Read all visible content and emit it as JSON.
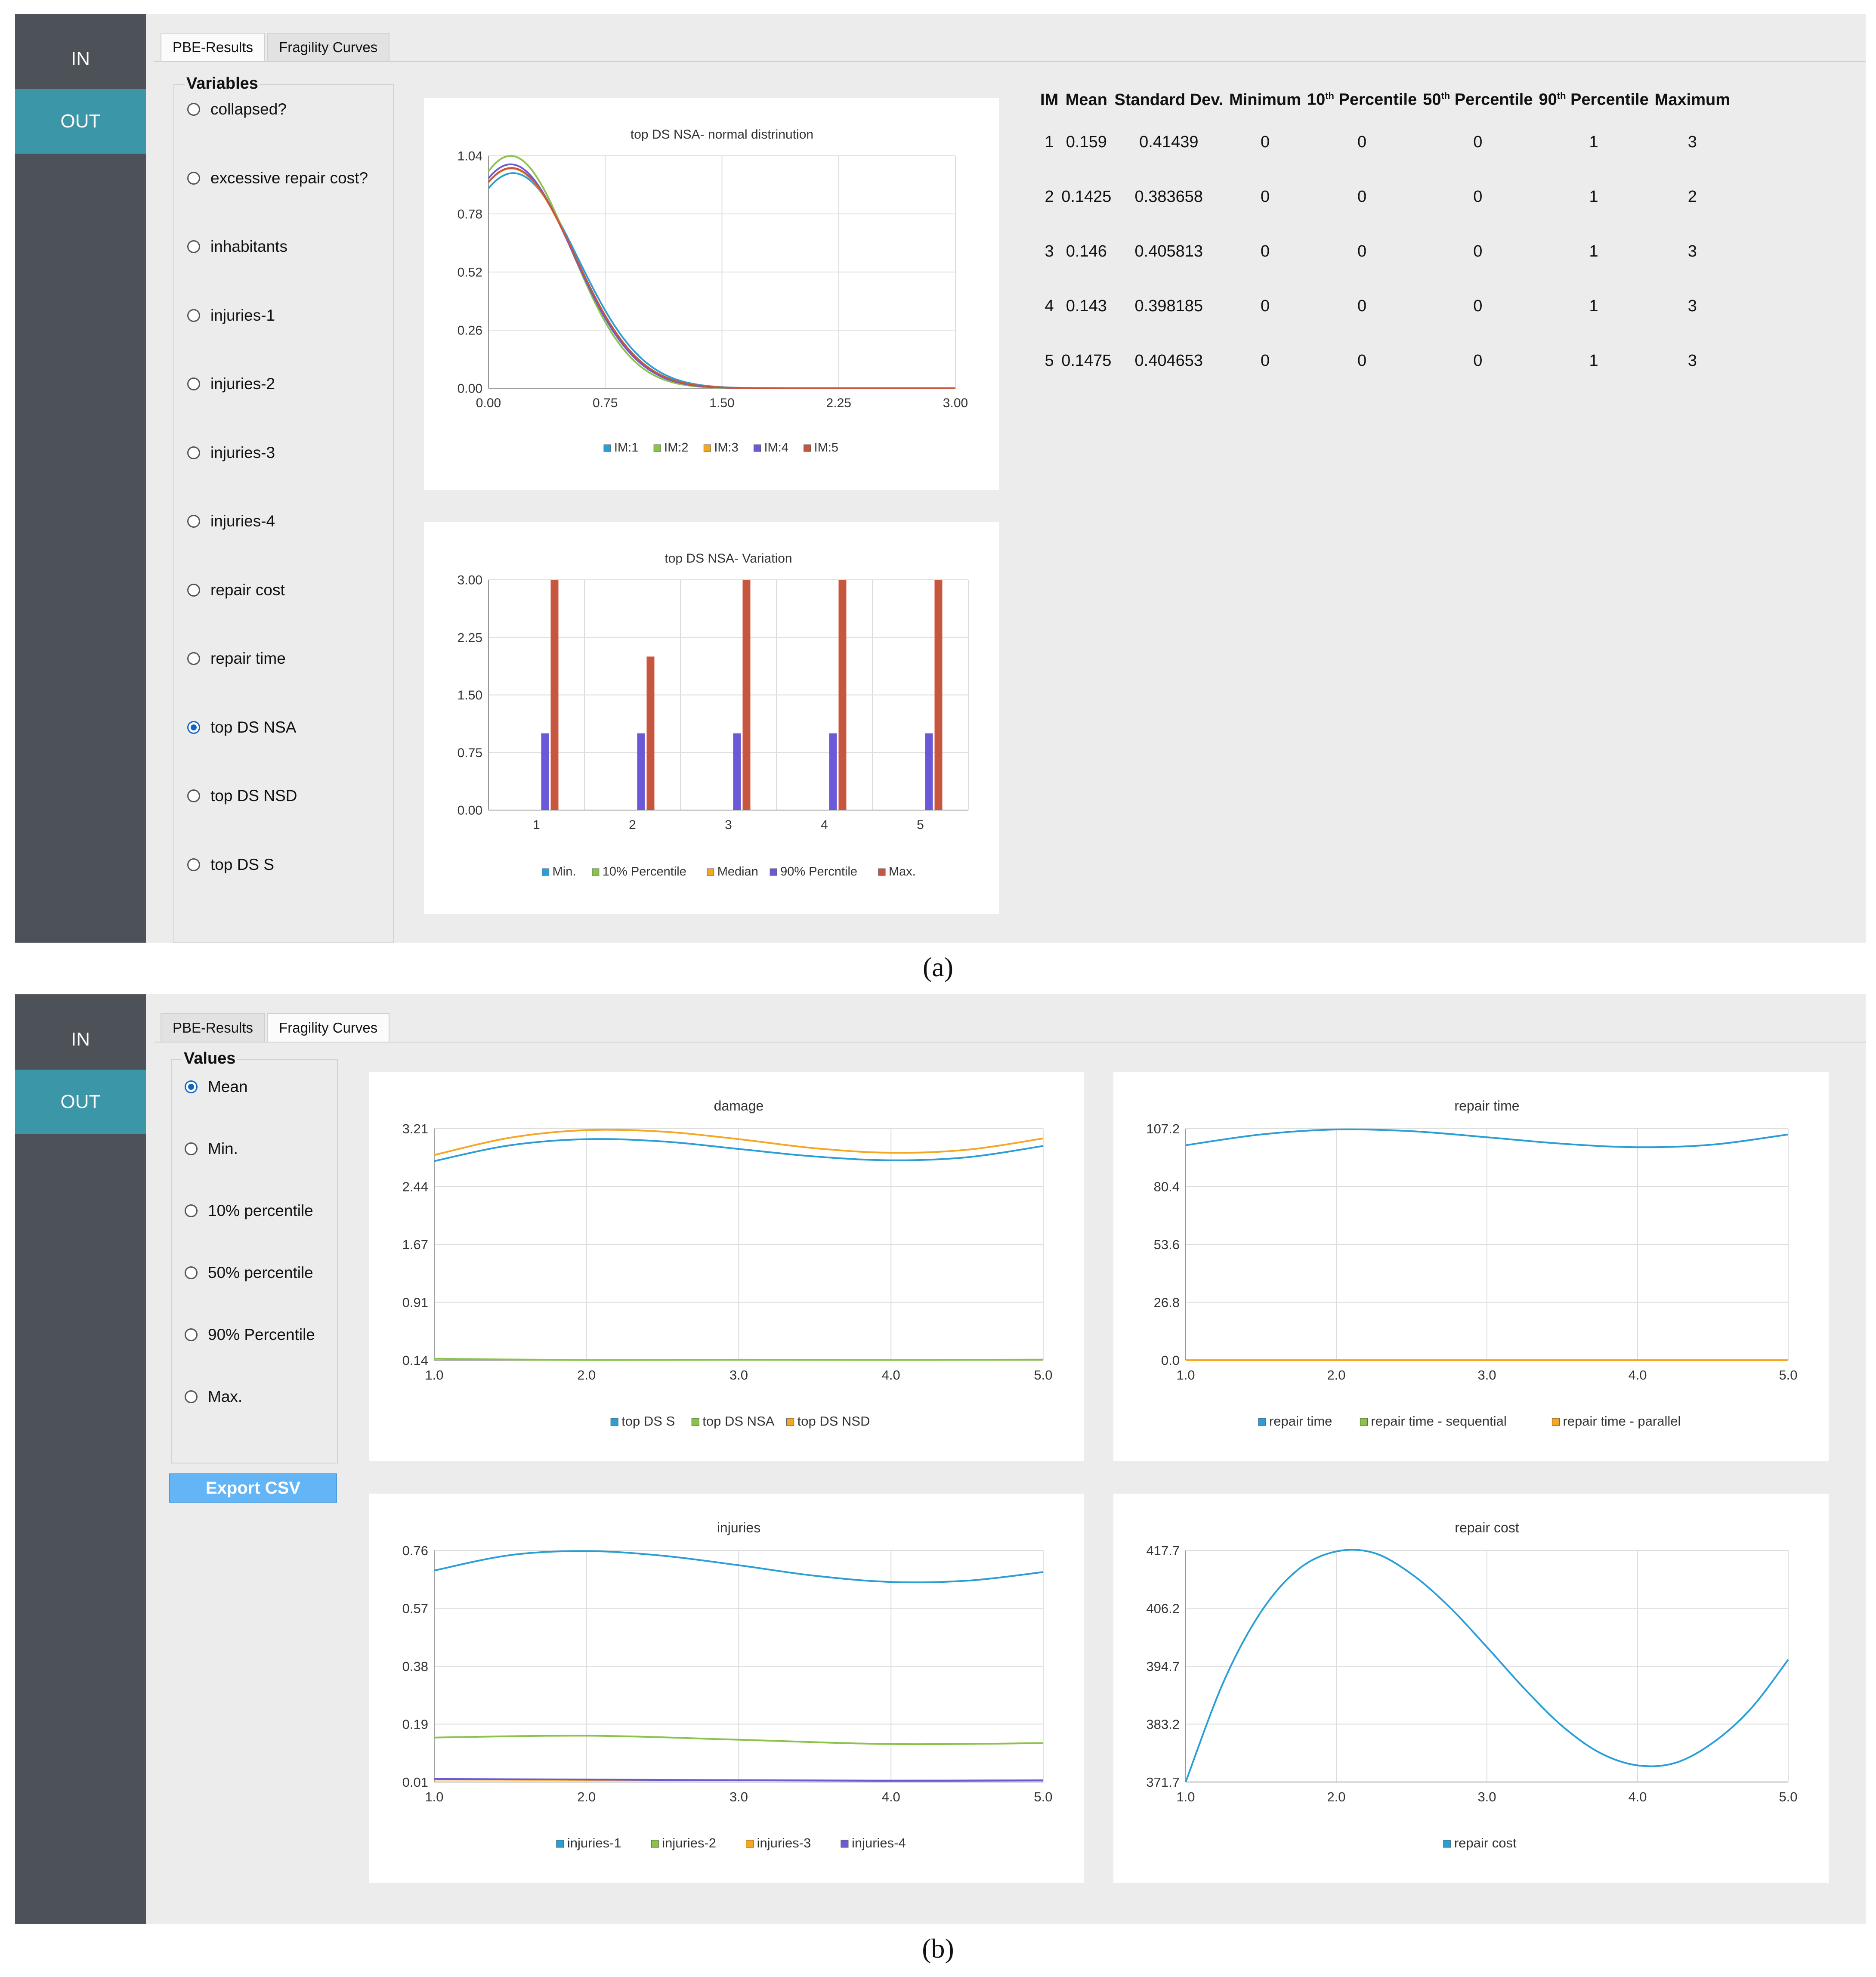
{
  "nav": {
    "in_label": "IN",
    "out_label": "OUT"
  },
  "tabs": {
    "pbe": "PBE-Results",
    "fragility": "Fragility Curves"
  },
  "captions": {
    "a": "(a)",
    "b": "(b)"
  },
  "colors": {
    "accent": "#3b97a8",
    "sidebar": "#4d5158",
    "blue": "#2a9fd6",
    "green": "#8bc34a",
    "orange": "#f5a623",
    "purple": "#6a5ad8",
    "red": "#c8553d"
  },
  "panelA": {
    "variables_title": "Variables",
    "variables": [
      "collapsed?",
      "excessive repair cost?",
      "inhabitants",
      "injuries-1",
      "injuries-2",
      "injuries-3",
      "injuries-4",
      "repair cost",
      "repair time",
      "top DS NSA",
      "top DS NSD",
      "top DS S"
    ],
    "selected_variable": "top DS NSA",
    "stats": {
      "headers": {
        "im": "IM",
        "mean": "Mean",
        "std": "Standard Dev.",
        "min": "Minimum",
        "p10": "10",
        "p50": "50",
        "p90": "90",
        "percentile": "Percentile",
        "th": "th",
        "max": "Maximum"
      },
      "rows": [
        {
          "im": "1",
          "mean": "0.159",
          "std": "0.41439",
          "min": "0",
          "p10": "0",
          "p50": "0",
          "p90": "1",
          "max": "3"
        },
        {
          "im": "2",
          "mean": "0.1425",
          "std": "0.383658",
          "min": "0",
          "p10": "0",
          "p50": "0",
          "p90": "1",
          "max": "2"
        },
        {
          "im": "3",
          "mean": "0.146",
          "std": "0.405813",
          "min": "0",
          "p10": "0",
          "p50": "0",
          "p90": "1",
          "max": "3"
        },
        {
          "im": "4",
          "mean": "0.143",
          "std": "0.398185",
          "min": "0",
          "p10": "0",
          "p50": "0",
          "p90": "1",
          "max": "3"
        },
        {
          "im": "5",
          "mean": "0.1475",
          "std": "0.404653",
          "min": "0",
          "p10": "0",
          "p50": "0",
          "p90": "1",
          "max": "3"
        }
      ]
    }
  },
  "panelB": {
    "values_title": "Values",
    "values": [
      "Mean",
      "Min.",
      "10% percentile",
      "50% percentile",
      "90% Percentile",
      "Max."
    ],
    "selected_value": "Mean",
    "export_label": "Export CSV"
  },
  "chart_data": [
    {
      "id": "normal",
      "type": "line",
      "title": "top DS NSA- normal distrinution",
      "x_ticks": [
        "0.00",
        "0.75",
        "1.50",
        "2.25",
        "3.00"
      ],
      "y_ticks": [
        "0.00",
        "0.26",
        "0.52",
        "0.78",
        "1.04"
      ],
      "xlim": [
        0,
        3
      ],
      "ylim": [
        0,
        1.04
      ],
      "series": [
        {
          "name": "IM:1",
          "color": "#2a9fd6",
          "dist": {
            "mean": 0.159,
            "std": 0.41439
          }
        },
        {
          "name": "IM:2",
          "color": "#8bc34a",
          "dist": {
            "mean": 0.1425,
            "std": 0.383658
          }
        },
        {
          "name": "IM:3",
          "color": "#f5a623",
          "dist": {
            "mean": 0.146,
            "std": 0.405813
          }
        },
        {
          "name": "IM:4",
          "color": "#6a5ad8",
          "dist": {
            "mean": 0.143,
            "std": 0.398185
          }
        },
        {
          "name": "IM:5",
          "color": "#c8553d",
          "dist": {
            "mean": 0.1475,
            "std": 0.404653
          }
        }
      ]
    },
    {
      "id": "variation",
      "type": "bar",
      "title": "top DS NSA- Variation",
      "categories": [
        "1",
        "2",
        "3",
        "4",
        "5"
      ],
      "y_ticks": [
        "0.00",
        "0.75",
        "1.50",
        "2.25",
        "3.00"
      ],
      "ylim": [
        0,
        3
      ],
      "series": [
        {
          "name": "Min.",
          "color": "#2a9fd6",
          "values": [
            0,
            0,
            0,
            0,
            0
          ]
        },
        {
          "name": "10% Percentile",
          "color": "#8bc34a",
          "values": [
            0,
            0,
            0,
            0,
            0
          ]
        },
        {
          "name": "Median",
          "color": "#f5a623",
          "values": [
            0,
            0,
            0,
            0,
            0
          ]
        },
        {
          "name": "90% Percntile",
          "color": "#6a5ad8",
          "values": [
            1,
            1,
            1,
            1,
            1
          ]
        },
        {
          "name": "Max.",
          "color": "#c8553d",
          "values": [
            3,
            2,
            3,
            3,
            3
          ]
        }
      ]
    },
    {
      "id": "damage",
      "type": "line",
      "title": "damage",
      "x_ticks": [
        "1.0",
        "2.0",
        "3.0",
        "4.0",
        "5.0"
      ],
      "y_ticks": [
        "0.14",
        "0.91",
        "1.67",
        "2.44",
        "3.21"
      ],
      "xlim": [
        1,
        5
      ],
      "ylim": [
        0.14,
        3.21
      ],
      "series": [
        {
          "name": "top DS S",
          "color": "#2a9fd6",
          "x": [
            1,
            1.5,
            2,
            2.5,
            3,
            3.5,
            4,
            4.5,
            5
          ],
          "y": [
            2.78,
            2.99,
            3.07,
            3.04,
            2.94,
            2.84,
            2.79,
            2.83,
            2.98
          ]
        },
        {
          "name": "top DS NSA",
          "color": "#8bc34a",
          "x": [
            1,
            2,
            3,
            4,
            5
          ],
          "y": [
            0.159,
            0.1425,
            0.146,
            0.143,
            0.1475
          ]
        },
        {
          "name": "top DS NSD",
          "color": "#f5a623",
          "x": [
            1,
            1.5,
            2,
            2.5,
            3,
            3.5,
            4,
            4.5,
            5
          ],
          "y": [
            2.86,
            3.09,
            3.19,
            3.17,
            3.07,
            2.95,
            2.89,
            2.93,
            3.08
          ]
        }
      ]
    },
    {
      "id": "repairtime",
      "type": "line",
      "title": "repair time",
      "x_ticks": [
        "1.0",
        "2.0",
        "3.0",
        "4.0",
        "5.0"
      ],
      "y_ticks": [
        "0.0",
        "26.8",
        "53.6",
        "80.4",
        "107.2"
      ],
      "xlim": [
        1,
        5
      ],
      "ylim": [
        0,
        107.2
      ],
      "series": [
        {
          "name": "repair time",
          "color": "#2a9fd6",
          "x": [
            1,
            1.5,
            2,
            2.5,
            3,
            3.5,
            4,
            4.5,
            5
          ],
          "y": [
            99.5,
            104.5,
            106.8,
            106.0,
            103.2,
            100.2,
            98.6,
            99.8,
            104.5
          ]
        },
        {
          "name": "repair time - sequential",
          "color": "#8bc34a",
          "x": [
            1,
            5
          ],
          "y": [
            0,
            0
          ]
        },
        {
          "name": "repair time - parallel",
          "color": "#f5a623",
          "x": [
            1,
            5
          ],
          "y": [
            0,
            0
          ]
        }
      ]
    },
    {
      "id": "injuries",
      "type": "line",
      "title": "injuries",
      "x_ticks": [
        "1.0",
        "2.0",
        "3.0",
        "4.0",
        "5.0"
      ],
      "y_ticks": [
        "0.01",
        "0.19",
        "0.38",
        "0.57",
        "0.76"
      ],
      "xlim": [
        1,
        5
      ],
      "ylim": [
        0.01,
        0.76
      ],
      "series": [
        {
          "name": "injuries-1",
          "color": "#2a9fd6",
          "x": [
            1,
            1.5,
            2,
            2.5,
            3,
            3.5,
            4,
            4.5,
            5
          ],
          "y": [
            0.695,
            0.745,
            0.758,
            0.743,
            0.712,
            0.678,
            0.658,
            0.662,
            0.69
          ]
        },
        {
          "name": "injuries-2",
          "color": "#8bc34a",
          "x": [
            1,
            2,
            3,
            4,
            5
          ],
          "y": [
            0.154,
            0.16,
            0.147,
            0.133,
            0.136
          ]
        },
        {
          "name": "injuries-3",
          "color": "#f5a623",
          "x": [
            1,
            2,
            3,
            4,
            5
          ],
          "y": [
            0.018,
            0.017,
            0.016,
            0.015,
            0.016
          ]
        },
        {
          "name": "injuries-4",
          "color": "#6a5ad8",
          "x": [
            1,
            2,
            3,
            4,
            5
          ],
          "y": [
            0.02,
            0.018,
            0.016,
            0.014,
            0.015
          ]
        }
      ]
    },
    {
      "id": "repaircost",
      "type": "line",
      "title": "repair cost",
      "x_ticks": [
        "1.0",
        "2.0",
        "3.0",
        "4.0",
        "5.0"
      ],
      "y_ticks": [
        "371.7",
        "383.2",
        "394.7",
        "406.2",
        "417.7"
      ],
      "xlim": [
        1,
        5
      ],
      "ylim": [
        371.7,
        417.7
      ],
      "series": [
        {
          "name": "repair cost",
          "color": "#2a9fd6",
          "x": [
            1,
            1.25,
            1.5,
            1.75,
            2,
            2.25,
            2.5,
            2.75,
            3,
            3.25,
            3.5,
            3.75,
            4,
            4.25,
            4.5,
            4.75,
            5
          ],
          "y": [
            371.7,
            391.5,
            405.5,
            414.0,
            417.5,
            417.2,
            413.0,
            406.5,
            398.5,
            390.2,
            382.8,
            377.5,
            375.0,
            375.5,
            379.5,
            386.2,
            396.0
          ]
        }
      ]
    }
  ]
}
